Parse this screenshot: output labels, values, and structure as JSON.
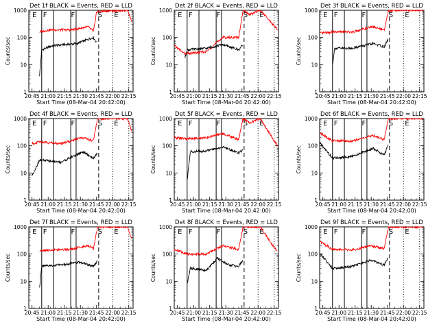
{
  "chart_data": {
    "type": "line",
    "layout": "3x3 grid of small multiples",
    "ylabel": "Counts/sec",
    "xlabel": "Start Time (08-Mar-04 20:42:00)",
    "y_scale": "log",
    "ylim": [
      1,
      1000
    ],
    "y_ticks": [
      "1",
      "10",
      "100",
      "1000"
    ],
    "x_ticks": [
      "20:45",
      "21:00",
      "21:15",
      "21:30",
      "21:45",
      "22:00",
      "22:15"
    ],
    "x_tick_minutes": [
      3,
      18,
      33,
      48,
      63,
      78,
      93
    ],
    "xlim_minutes": [
      0,
      97
    ],
    "series_colors": {
      "events": "#000000",
      "lld": "#ff0000"
    },
    "panels": [
      {
        "title": "Det 1f BLACK = Events, RED = LLD",
        "markers": [
          "E",
          "F",
          "F",
          "S",
          "E"
        ],
        "events": [
          [
            10,
            4
          ],
          [
            12,
            35
          ],
          [
            22,
            50
          ],
          [
            45,
            60
          ],
          [
            60,
            100
          ],
          [
            63,
            65
          ]
        ],
        "lld": [
          [
            10,
            160
          ],
          [
            20,
            190
          ],
          [
            40,
            190
          ],
          [
            55,
            250
          ],
          [
            60,
            170
          ],
          [
            62,
            400
          ],
          [
            63,
            900
          ],
          [
            92,
            1000
          ],
          [
            96,
            380
          ]
        ]
      },
      {
        "title": "Det 2f BLACK = Events, RED = LLD",
        "markers": [
          "E",
          "F",
          "F",
          "S",
          "E"
        ],
        "events": [
          [
            10,
            18
          ],
          [
            12,
            35
          ],
          [
            30,
            40
          ],
          [
            45,
            55
          ],
          [
            60,
            35
          ],
          [
            64,
            55
          ]
        ],
        "lld": [
          [
            0,
            50
          ],
          [
            10,
            25
          ],
          [
            30,
            30
          ],
          [
            45,
            100
          ],
          [
            60,
            100
          ],
          [
            64,
            1000
          ],
          [
            70,
            700
          ],
          [
            80,
            1000
          ],
          [
            96,
            200
          ]
        ]
      },
      {
        "title": "Det 3f BLACK = Events, RED = LLD",
        "markers": [
          "E",
          "F",
          "F",
          "S",
          "E"
        ],
        "events": [
          [
            12,
            10
          ],
          [
            14,
            40
          ],
          [
            30,
            40
          ],
          [
            50,
            60
          ],
          [
            60,
            45
          ],
          [
            64,
            90
          ]
        ],
        "lld": [
          [
            0,
            140
          ],
          [
            12,
            160
          ],
          [
            30,
            160
          ],
          [
            50,
            250
          ],
          [
            60,
            180
          ],
          [
            64,
            1000
          ],
          [
            96,
            1000
          ]
        ]
      },
      {
        "title": "Det 4f BLACK = Events, RED = LLD",
        "markers": [
          "E",
          "F",
          "F",
          "S",
          "E"
        ],
        "events": [
          [
            3,
            8
          ],
          [
            10,
            30
          ],
          [
            30,
            25
          ],
          [
            50,
            60
          ],
          [
            60,
            35
          ],
          [
            64,
            55
          ]
        ],
        "lld": [
          [
            3,
            120
          ],
          [
            10,
            140
          ],
          [
            30,
            120
          ],
          [
            50,
            200
          ],
          [
            60,
            150
          ],
          [
            64,
            1000
          ],
          [
            92,
            1000
          ],
          [
            96,
            320
          ]
        ]
      },
      {
        "title": "Det 5f BLACK = Events, RED = LLD",
        "markers": [
          "E",
          "F",
          "F",
          "S",
          "E"
        ],
        "events": [
          [
            12,
            5
          ],
          [
            15,
            60
          ],
          [
            30,
            65
          ],
          [
            45,
            90
          ],
          [
            60,
            55
          ],
          [
            64,
            70
          ]
        ],
        "lld": [
          [
            0,
            200
          ],
          [
            12,
            180
          ],
          [
            30,
            200
          ],
          [
            45,
            280
          ],
          [
            60,
            170
          ],
          [
            64,
            1000
          ],
          [
            70,
            700
          ],
          [
            80,
            1000
          ],
          [
            96,
            100
          ]
        ]
      },
      {
        "title": "Det 6f BLACK = Events, RED = LLD",
        "markers": [
          "E",
          "F",
          "F",
          "S",
          "E"
        ],
        "events": [
          [
            0,
            130
          ],
          [
            12,
            35
          ],
          [
            30,
            40
          ],
          [
            50,
            80
          ],
          [
            60,
            45
          ],
          [
            64,
            110
          ]
        ],
        "lld": [
          [
            0,
            300
          ],
          [
            12,
            150
          ],
          [
            30,
            150
          ],
          [
            50,
            240
          ],
          [
            60,
            170
          ],
          [
            64,
            1000
          ],
          [
            96,
            1000
          ]
        ]
      },
      {
        "title": "Det 7f BLACK = Events, RED = LLD",
        "markers": [
          "E",
          "F",
          "F",
          "S",
          "E"
        ],
        "events": [
          [
            10,
            6
          ],
          [
            12,
            35
          ],
          [
            30,
            40
          ],
          [
            48,
            50
          ],
          [
            60,
            35
          ],
          [
            64,
            55
          ]
        ],
        "lld": [
          [
            10,
            130
          ],
          [
            20,
            140
          ],
          [
            40,
            150
          ],
          [
            55,
            210
          ],
          [
            60,
            160
          ],
          [
            64,
            1000
          ],
          [
            92,
            1000
          ],
          [
            96,
            320
          ]
        ]
      },
      {
        "title": "Det 8f BLACK = Events, RED = LLD",
        "markers": [
          "E",
          "F",
          "F",
          "S",
          "E"
        ],
        "events": [
          [
            12,
            8
          ],
          [
            15,
            30
          ],
          [
            30,
            25
          ],
          [
            40,
            70
          ],
          [
            50,
            40
          ],
          [
            60,
            35
          ],
          [
            64,
            60
          ]
        ],
        "lld": [
          [
            0,
            150
          ],
          [
            12,
            100
          ],
          [
            30,
            100
          ],
          [
            45,
            200
          ],
          [
            60,
            150
          ],
          [
            64,
            1000
          ],
          [
            80,
            1000
          ],
          [
            96,
            120
          ]
        ]
      },
      {
        "title": "Det 9f BLACK = Events, RED = LLD",
        "markers": [
          "E",
          "F",
          "F",
          "S",
          "E"
        ],
        "events": [
          [
            0,
            110
          ],
          [
            12,
            30
          ],
          [
            30,
            35
          ],
          [
            48,
            60
          ],
          [
            60,
            40
          ],
          [
            64,
            80
          ]
        ],
        "lld": [
          [
            0,
            300
          ],
          [
            12,
            150
          ],
          [
            30,
            140
          ],
          [
            48,
            200
          ],
          [
            60,
            160
          ],
          [
            64,
            1000
          ],
          [
            96,
            1000
          ]
        ]
      }
    ],
    "solid_vlines_minutes": [
      12,
      23,
      39,
      44
    ],
    "dashed_vlines_minutes": [
      65
    ],
    "dotted_vlines_minutes": [
      78,
      93
    ]
  }
}
